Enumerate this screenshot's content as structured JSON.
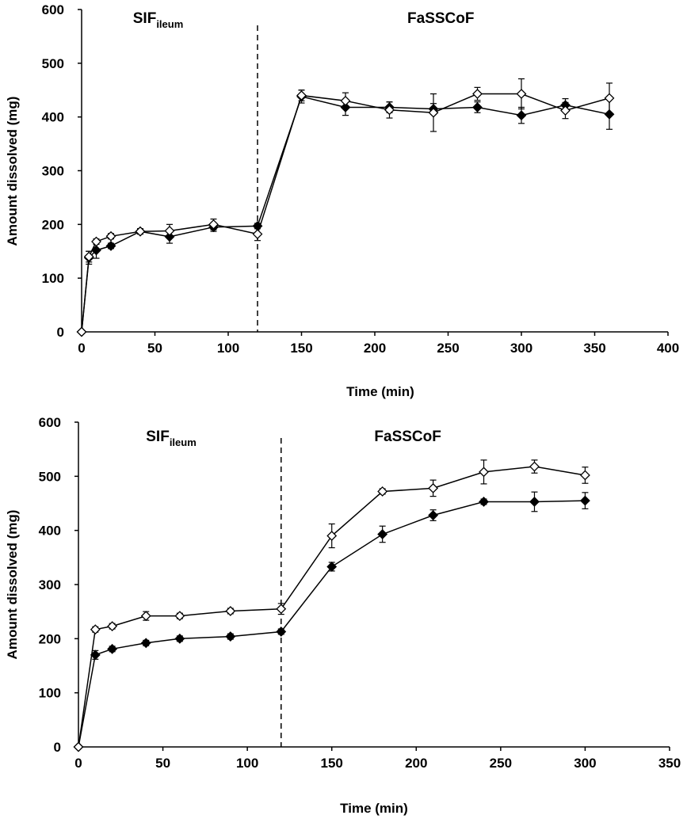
{
  "chart_data": [
    {
      "type": "line",
      "xlabel": "Time (min)",
      "ylabel": "Amount dissolved (mg)",
      "xlim": [
        0,
        400
      ],
      "ylim": [
        0,
        600
      ],
      "xticks": [
        0,
        50,
        100,
        150,
        200,
        250,
        300,
        350,
        400
      ],
      "yticks": [
        0,
        100,
        200,
        300,
        400,
        500,
        600
      ],
      "grid": false,
      "divider_x": 120,
      "annotations": [
        {
          "main": "SIF",
          "sub": "ileum",
          "x": 35,
          "y": 575
        },
        {
          "main": "FaSSCoF",
          "x": 245,
          "y": 575
        }
      ],
      "series": [
        {
          "marker": "filled-diamond",
          "color": "#000000",
          "x": [
            0,
            5,
            10,
            20,
            40,
            60,
            90,
            120,
            150,
            180,
            210,
            240,
            270,
            300,
            330,
            360
          ],
          "y": [
            0,
            138,
            152,
            160,
            187,
            177,
            195,
            197,
            438,
            418,
            418,
            415,
            418,
            403,
            422,
            405
          ],
          "err": [
            0,
            12,
            15,
            5,
            5,
            12,
            8,
            5,
            12,
            15,
            10,
            10,
            10,
            15,
            12,
            28
          ]
        },
        {
          "marker": "open-diamond",
          "color": "#000000",
          "x": [
            0,
            5,
            10,
            20,
            40,
            60,
            90,
            120,
            150,
            180,
            210,
            240,
            270,
            300,
            330,
            360
          ],
          "y": [
            0,
            140,
            168,
            178,
            187,
            188,
            200,
            182,
            440,
            430,
            413,
            408,
            443,
            443,
            412,
            435
          ],
          "err": [
            0,
            10,
            5,
            5,
            5,
            12,
            10,
            12,
            10,
            15,
            15,
            35,
            12,
            28,
            15,
            28
          ]
        }
      ]
    },
    {
      "type": "line",
      "xlabel": "Time (min)",
      "ylabel": "Amount dissolved (mg)",
      "xlim": [
        0,
        350
      ],
      "ylim": [
        0,
        600
      ],
      "xticks": [
        0,
        50,
        100,
        150,
        200,
        250,
        300,
        350
      ],
      "yticks": [
        0,
        100,
        200,
        300,
        400,
        500,
        600
      ],
      "grid": false,
      "divider_x": 120,
      "annotations": [
        {
          "main": "SIF",
          "sub": "ileum",
          "x": 40,
          "y": 565
        },
        {
          "main": "FaSSCoF",
          "x": 195,
          "y": 565
        }
      ],
      "series": [
        {
          "marker": "filled-diamond",
          "color": "#000000",
          "x": [
            0,
            10,
            20,
            40,
            60,
            90,
            120,
            150,
            180,
            210,
            240,
            270,
            300
          ],
          "y": [
            0,
            170,
            181,
            192,
            200,
            204,
            213,
            333,
            393,
            428,
            453,
            453,
            455
          ],
          "err": [
            0,
            8,
            5,
            5,
            5,
            5,
            5,
            8,
            15,
            10,
            5,
            18,
            15
          ]
        },
        {
          "marker": "open-diamond",
          "color": "#000000",
          "x": [
            0,
            10,
            20,
            40,
            60,
            90,
            120,
            150,
            180,
            210,
            240,
            270,
            300
          ],
          "y": [
            0,
            217,
            223,
            242,
            242,
            251,
            255,
            390,
            472,
            478,
            508,
            518,
            502
          ],
          "err": [
            0,
            5,
            5,
            8,
            5,
            5,
            10,
            22,
            5,
            15,
            22,
            12,
            15
          ]
        }
      ]
    }
  ]
}
